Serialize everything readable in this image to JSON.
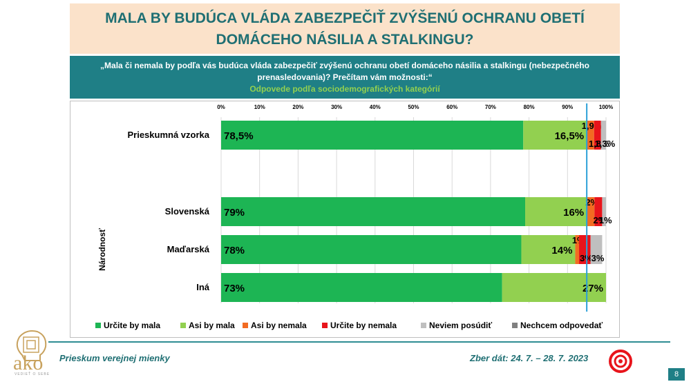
{
  "header": {
    "title": "MALA BY BUDÚCA VLÁDA ZABEZPEČIŤ ZVÝŠENÚ OCHRANU OBETÍ DOMÁCEHO NÁSILIA A STALKINGU?",
    "question": "„Mala či nemala by podľa vás budúca vláda zabezpečiť zvýšenú ochranu obetí domáceho násilia a stalkingu (nebezpečného prenasledovania)? Prečítam vám možnosti:“",
    "subtitle": "Odpovede podľa sociodemografických kategórií"
  },
  "footer": {
    "left": "Prieskum verejnej mienky",
    "right": "Zber dát: 24. 7. – 28. 7. 2023",
    "page": "8",
    "logo_text": "ako",
    "logo_sub": "VEDIEŤ O SEBE"
  },
  "chart_data": {
    "type": "bar",
    "orientation": "horizontal",
    "stacked": true,
    "x_ticks": [
      "0%",
      "10%",
      "20%",
      "30%",
      "40%",
      "50%",
      "60%",
      "70%",
      "80%",
      "90%",
      "100%"
    ],
    "xlim": [
      0,
      100
    ],
    "group_label": "Národnosť",
    "categories": [
      "Prieskumná vzorka",
      "Slovenská",
      "Maďarská",
      "Iná"
    ],
    "series": [
      {
        "name": "Určite by mala",
        "color": "#1db554",
        "values": [
          78.5,
          79,
          78,
          73
        ],
        "labels": [
          "78,5%",
          "79%",
          "78%",
          "73%"
        ]
      },
      {
        "name": "Asi by mala",
        "color": "#92d050",
        "values": [
          16.5,
          16,
          14,
          27
        ],
        "labels": [
          "16,5%",
          "16%",
          "14%",
          "27%"
        ]
      },
      {
        "name": "Asi by nemala",
        "color": "#f26b22",
        "values": [
          1.9,
          2,
          1,
          0
        ],
        "labels": [
          "1,9%",
          "2%",
          "1%",
          ""
        ]
      },
      {
        "name": "Určite by nemala",
        "color": "#e8141b",
        "values": [
          1.8,
          2,
          3,
          0
        ],
        "labels": [
          "1,8%",
          "2%",
          "3%",
          ""
        ]
      },
      {
        "name": "Neviem posúdiť",
        "color": "#bfbfbf",
        "values": [
          1.3,
          1,
          3,
          0
        ],
        "labels": [
          "1,3%",
          "1%",
          "3%",
          ""
        ]
      },
      {
        "name": "Nechcem odpovedať",
        "color": "#808080",
        "values": [
          0,
          0,
          0,
          0
        ],
        "labels": [
          "",
          "",
          "",
          ""
        ]
      }
    ],
    "reference_line": 95
  }
}
